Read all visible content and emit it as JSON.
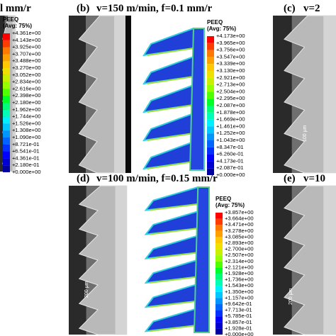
{
  "header_fragment": "l mm/r",
  "panels": [
    {
      "label": "(b)",
      "caption": "v=150 m/min, f=0.1 mm/r"
    },
    {
      "label": "(c)",
      "caption": "v=2"
    },
    {
      "label": "(d)",
      "caption": "v=100 m/min, f=0.15 mm/r"
    },
    {
      "label": "(e)",
      "caption": "v=10"
    }
  ],
  "legends": [
    {
      "title": "PEEQ",
      "subtitle": "(Avg: 75%)",
      "values": [
        "+4.361e+00",
        "+4.143e+00",
        "+3.925e+00",
        "+3.707e+00",
        "+3.488e+00",
        "+3.270e+00",
        "+3.052e+00",
        "+2.834e+00",
        "+2.616e+00",
        "+2.398e+00",
        "+2.180e+00",
        "+1.962e+00",
        "+1.744e+00",
        "+1.526e+00",
        "+1.308e+00",
        "+1.090e+00",
        "+8.721e-01",
        "+6.541e-01",
        "+4.361e-01",
        "+2.180e-01",
        "+0.000e+00"
      ]
    },
    {
      "title": "PEEQ",
      "subtitle": "(Avg: 75%)",
      "values": [
        "+4.173e+00",
        "+3.965e+00",
        "+3.756e+00",
        "+3.547e+00",
        "+3.339e+00",
        "+3.130e+00",
        "+2.921e+00",
        "+2.713e+00",
        "+2.504e+00",
        "+2.295e+00",
        "+2.087e+00",
        "+1.878e+00",
        "+1.669e+00",
        "+1.461e+00",
        "+1.252e+00",
        "+1.043e+00",
        "+8.347e-01",
        "+6.260e-01",
        "+4.173e-01",
        "+2.087e-01",
        "+0.000e+00"
      ]
    },
    {
      "title": "PEEQ",
      "subtitle": "(Avg: 75%)",
      "values": [
        "+3.857e+00",
        "+3.664e+00",
        "+3.471e+00",
        "+3.278e+00",
        "+3.085e+00",
        "+2.893e+00",
        "+2.700e+00",
        "+2.507e+00",
        "+2.314e+00",
        "+2.121e+00",
        "+1.928e+00",
        "+1.736e+00",
        "+1.543e+00",
        "+1.350e+00",
        "+1.157e+00",
        "+9.642e-01",
        "+7.713e-01",
        "+5.785e-01",
        "+3.857e-01",
        "+1.928e-01",
        "+0.000e+00"
      ]
    }
  ],
  "scale_bars": [
    "100 μm",
    "200 μm",
    "200 μm"
  ]
}
